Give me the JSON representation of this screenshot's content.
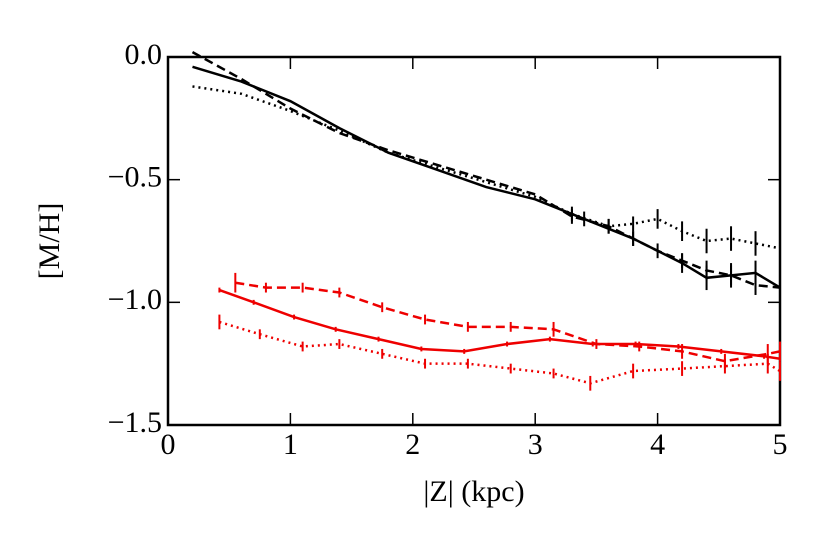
{
  "chart_data": {
    "type": "line",
    "xlabel": "|Z| (kpc)",
    "ylabel": "[M/H]",
    "xlim": [
      0,
      5
    ],
    "ylim": [
      -1.5,
      0
    ],
    "xticks": [
      0,
      1,
      2,
      3,
      4,
      5
    ],
    "yticks": [
      {
        "value": 0,
        "label": "0.0"
      },
      {
        "value": -0.5,
        "label": "−0.5"
      },
      {
        "value": -1.0,
        "label": "−1.0"
      },
      {
        "value": -1.5,
        "label": "−1.5"
      }
    ],
    "series": [
      {
        "color": "#000000",
        "linestyle": "solid",
        "x": [
          0.2,
          0.6,
          1.0,
          1.4,
          1.8,
          2.2,
          2.6,
          3.0,
          3.4,
          3.8,
          4.2,
          4.4,
          4.6,
          4.8,
          5.0
        ],
        "values": [
          -0.04,
          -0.1,
          -0.18,
          -0.29,
          -0.39,
          -0.46,
          -0.53,
          -0.58,
          -0.66,
          -0.74,
          -0.84,
          -0.9,
          -0.89,
          -0.88,
          -0.94
        ],
        "errors": [
          null,
          null,
          null,
          null,
          null,
          null,
          null,
          null,
          0.03,
          0.03,
          0.04,
          0.05,
          0.05,
          0.05,
          0.06
        ]
      },
      {
        "color": "#000000",
        "linestyle": "dashed",
        "x": [
          0.2,
          0.6,
          1.0,
          1.4,
          1.8,
          2.2,
          2.6,
          3.0,
          3.3,
          3.6,
          3.8,
          4.0,
          4.2,
          4.4,
          4.6,
          4.8,
          5.0
        ],
        "values": [
          0.02,
          -0.09,
          -0.21,
          -0.31,
          -0.38,
          -0.44,
          -0.5,
          -0.56,
          -0.65,
          -0.69,
          -0.74,
          -0.79,
          -0.83,
          -0.87,
          -0.89,
          -0.93,
          -0.94
        ],
        "errors": [
          null,
          null,
          null,
          null,
          null,
          null,
          null,
          null,
          0.03,
          0.03,
          0.03,
          0.03,
          0.03,
          0.04,
          0.04,
          0.04,
          0.05
        ]
      },
      {
        "color": "#000000",
        "linestyle": "dotted",
        "x": [
          0.2,
          0.6,
          1.0,
          1.4,
          1.8,
          2.2,
          2.6,
          3.0,
          3.3,
          3.6,
          3.8,
          4.0,
          4.2,
          4.4,
          4.6,
          4.8,
          5.0
        ],
        "values": [
          -0.12,
          -0.15,
          -0.22,
          -0.3,
          -0.39,
          -0.45,
          -0.51,
          -0.57,
          -0.64,
          -0.69,
          -0.68,
          -0.66,
          -0.71,
          -0.75,
          -0.74,
          -0.76,
          -0.78
        ],
        "errors": [
          null,
          null,
          null,
          null,
          null,
          null,
          null,
          null,
          0.03,
          0.03,
          0.03,
          0.04,
          0.04,
          0.05,
          0.05,
          0.05,
          0.05
        ]
      },
      {
        "color": "#ee0000",
        "linestyle": "solid",
        "x": [
          0.42,
          0.7,
          1.03,
          1.37,
          1.72,
          2.07,
          2.42,
          2.77,
          3.12,
          3.47,
          3.82,
          4.17,
          4.52,
          4.87,
          5.0
        ],
        "values": [
          -0.95,
          -1.0,
          -1.06,
          -1.11,
          -1.15,
          -1.19,
          -1.2,
          -1.17,
          -1.15,
          -1.17,
          -1.17,
          -1.18,
          -1.2,
          -1.22,
          -1.23
        ],
        "errors": [
          0.01,
          0.01,
          0.01,
          0.01,
          0.01,
          0.01,
          0.01,
          0.01,
          0.01,
          0.01,
          0.01,
          0.01,
          0.01,
          0.01,
          0.01
        ]
      },
      {
        "color": "#ee0000",
        "linestyle": "dashed",
        "x": [
          0.55,
          0.8,
          1.1,
          1.4,
          1.75,
          2.1,
          2.45,
          2.8,
          3.15,
          3.5,
          3.85,
          4.2,
          4.55,
          4.9,
          5.0
        ],
        "values": [
          -0.92,
          -0.94,
          -0.94,
          -0.96,
          -1.02,
          -1.07,
          -1.1,
          -1.1,
          -1.11,
          -1.17,
          -1.18,
          -1.2,
          -1.24,
          -1.21,
          -1.2
        ],
        "errors": [
          0.04,
          0.02,
          0.02,
          0.02,
          0.02,
          0.02,
          0.02,
          0.02,
          0.03,
          0.02,
          0.02,
          0.03,
          0.03,
          0.04,
          0.04
        ]
      },
      {
        "color": "#ee0000",
        "linestyle": "dotted",
        "x": [
          0.42,
          0.75,
          1.1,
          1.4,
          1.75,
          2.1,
          2.45,
          2.8,
          3.15,
          3.45,
          3.8,
          4.2,
          4.55,
          4.9,
          5.0
        ],
        "values": [
          -1.08,
          -1.13,
          -1.18,
          -1.17,
          -1.21,
          -1.25,
          -1.25,
          -1.27,
          -1.29,
          -1.33,
          -1.28,
          -1.27,
          -1.26,
          -1.25,
          -1.28
        ],
        "errors": [
          0.03,
          0.02,
          0.02,
          0.02,
          0.02,
          0.02,
          0.02,
          0.02,
          0.02,
          0.03,
          0.03,
          0.03,
          0.03,
          0.04,
          0.04
        ]
      }
    ]
  }
}
